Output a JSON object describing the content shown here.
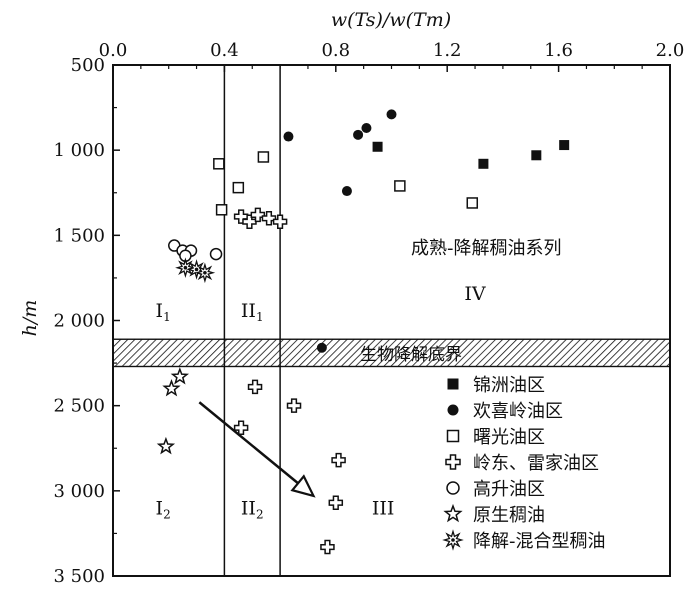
{
  "chart_data": {
    "type": "scatter",
    "xlabel": "w(Ts)/w(Tm)",
    "ylabel": "h/m",
    "xlim": [
      0.0,
      2.0
    ],
    "ylim": [
      500,
      3500
    ],
    "y_inverted": true,
    "x_axis_position": "top",
    "x_ticks": [
      "0.0",
      "0.4",
      "0.8",
      "1.2",
      "1.6",
      "2.0"
    ],
    "y_ticks": [
      "500",
      "1 000",
      "1 500",
      "2 000",
      "2 500",
      "3 000",
      "3 500"
    ],
    "zone_boundaries_x": [
      0.4,
      0.6
    ],
    "band": {
      "y_from": 2110,
      "y_to": 2270,
      "label": "生物降解底界"
    },
    "region_labels": [
      {
        "text": "I",
        "sub": "1",
        "x": 0.18,
        "y": 1980
      },
      {
        "text": "II",
        "sub": "1",
        "x": 0.5,
        "y": 1980
      },
      {
        "text": "IV",
        "sub": "",
        "x": 1.3,
        "y": 1880
      },
      {
        "text": "I",
        "sub": "2",
        "x": 0.18,
        "y": 3140
      },
      {
        "text": "II",
        "sub": "2",
        "x": 0.5,
        "y": 3140
      },
      {
        "text": "III",
        "sub": "",
        "x": 0.97,
        "y": 3140
      }
    ],
    "annotation": "成熟-降解稠油系列",
    "annotation_pos": {
      "x": 1.07,
      "y": 1610
    },
    "arrow": {
      "x1": 0.31,
      "y1": 2480,
      "x2": 0.72,
      "y2": 3030
    },
    "legend_position": "bottom-right",
    "series": [
      {
        "name": "锦洲油区",
        "marker": "filled-square",
        "points": [
          [
            0.95,
            980
          ],
          [
            1.33,
            1080
          ],
          [
            1.52,
            1030
          ],
          [
            1.62,
            970
          ]
        ]
      },
      {
        "name": "欢喜岭油区",
        "marker": "filled-circle",
        "points": [
          [
            0.63,
            920
          ],
          [
            0.88,
            910
          ],
          [
            0.91,
            870
          ],
          [
            1.0,
            790
          ],
          [
            0.84,
            1240
          ],
          [
            0.75,
            2160
          ]
        ]
      },
      {
        "name": "曙光油区",
        "marker": "open-square",
        "points": [
          [
            0.38,
            1080
          ],
          [
            0.54,
            1040
          ],
          [
            0.45,
            1220
          ],
          [
            0.39,
            1350
          ],
          [
            1.03,
            1210
          ],
          [
            1.29,
            1310
          ]
        ]
      },
      {
        "name": "岭东、雷家油区",
        "marker": "open-cross",
        "points": [
          [
            0.46,
            1390
          ],
          [
            0.49,
            1420
          ],
          [
            0.52,
            1380
          ],
          [
            0.56,
            1400
          ],
          [
            0.6,
            1420
          ],
          [
            0.51,
            2390
          ],
          [
            0.46,
            2630
          ],
          [
            0.65,
            2500
          ],
          [
            0.81,
            2820
          ],
          [
            0.8,
            3070
          ],
          [
            0.77,
            3330
          ]
        ]
      },
      {
        "name": "高升油区",
        "marker": "open-circle",
        "points": [
          [
            0.22,
            1560
          ],
          [
            0.25,
            1590
          ],
          [
            0.28,
            1590
          ],
          [
            0.26,
            1620
          ],
          [
            0.37,
            1610
          ]
        ]
      },
      {
        "name": "原生稠油",
        "marker": "open-star",
        "points": [
          [
            0.24,
            2330
          ],
          [
            0.21,
            2400
          ],
          [
            0.19,
            2740
          ]
        ]
      },
      {
        "name": "降解-混合型稠油",
        "marker": "burst",
        "points": [
          [
            0.26,
            1690
          ],
          [
            0.3,
            1700
          ],
          [
            0.33,
            1720
          ]
        ]
      }
    ]
  }
}
